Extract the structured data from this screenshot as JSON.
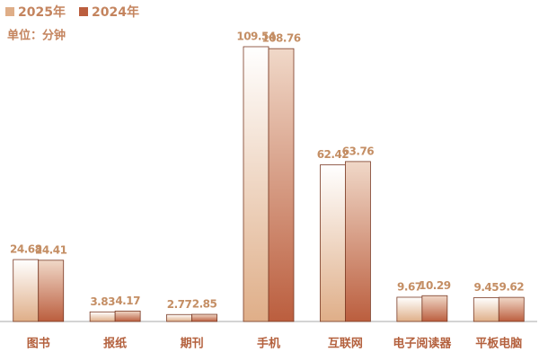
{
  "chart_data": {
    "type": "bar",
    "subtitle": "单位：分钟",
    "categories": [
      "图书",
      "报纸",
      "期刊",
      "手机",
      "互联网",
      "电子阅读器",
      "平板电脑"
    ],
    "series": [
      {
        "name": "2025年",
        "color": "#dfae88",
        "values": [
          24.68,
          3.83,
          2.77,
          109.54,
          62.42,
          9.67,
          9.45
        ]
      },
      {
        "name": "2024年",
        "color": "#bb5e3e",
        "values": [
          24.41,
          4.17,
          2.85,
          108.76,
          63.76,
          10.29,
          9.62
        ]
      }
    ]
  }
}
